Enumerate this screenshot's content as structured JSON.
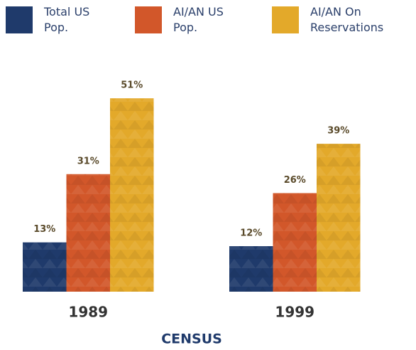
{
  "chart_data": {
    "type": "bar",
    "title": "CENSUS",
    "categories": [
      "1989",
      "1999"
    ],
    "series": [
      {
        "name": "Total US Pop.",
        "color": "#1f3a6b",
        "values": [
          13,
          12
        ],
        "value_labels": [
          "13%",
          "12%"
        ]
      },
      {
        "name": "AI/AN US Pop.",
        "color": "#d2572a",
        "values": [
          31,
          26
        ],
        "value_labels": [
          "31%",
          "26%"
        ]
      },
      {
        "name": "AI/AN On Reservations",
        "color": "#e3a92a",
        "values": [
          51,
          39
        ],
        "value_labels": [
          "51%",
          "39%"
        ]
      }
    ],
    "legend": "top"
  }
}
